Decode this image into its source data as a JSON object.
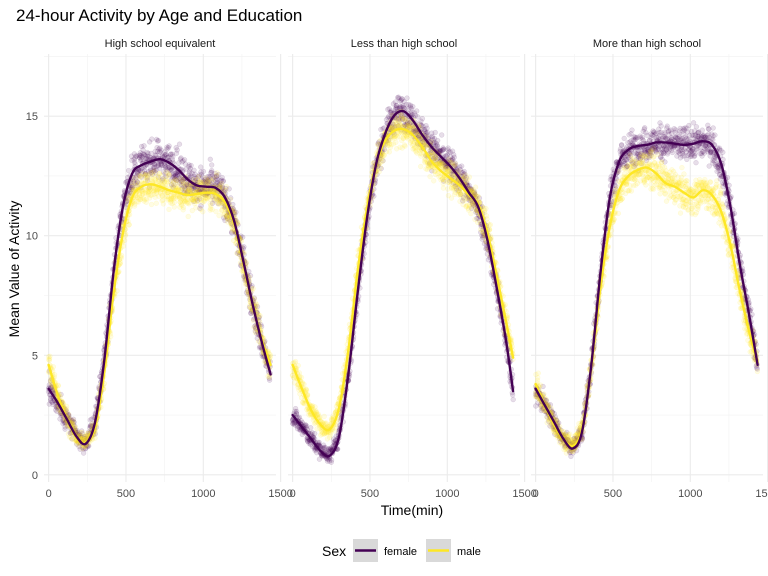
{
  "chart_data": {
    "type": "scatter",
    "title": "24-hour Activity by Age and Education",
    "xlabel": "Time(min)",
    "ylabel": "Mean Value of Activity",
    "xlim": [
      -30,
      1470
    ],
    "ylim": [
      -0.3,
      17.6
    ],
    "x_ticks": [
      0,
      500,
      1000,
      1500
    ],
    "x_tick_labels": [
      "0",
      "500",
      "1000",
      "1500"
    ],
    "y_ticks": [
      0,
      5,
      10,
      15
    ],
    "y_tick_labels": [
      "0",
      "5",
      "10",
      "15"
    ],
    "grid": true,
    "legend_title": "Sex",
    "legend_position": "bottom",
    "colors": {
      "female": "#440154",
      "male": "#FDE725",
      "panel_grid": "#ebebeb",
      "legend_key": "#d9d9d9"
    },
    "series_names": [
      "female",
      "male"
    ],
    "panels": [
      {
        "name": "High school equivalent",
        "series": [
          {
            "name": "female",
            "curve": [
              [
                0,
                3.6
              ],
              [
                60,
                3.0
              ],
              [
                120,
                2.3
              ],
              [
                180,
                1.6
              ],
              [
                240,
                1.3
              ],
              [
                300,
                2.2
              ],
              [
                360,
                4.8
              ],
              [
                420,
                8.5
              ],
              [
                480,
                11.2
              ],
              [
                540,
                12.6
              ],
              [
                600,
                12.95
              ],
              [
                660,
                13.1
              ],
              [
                720,
                13.2
              ],
              [
                780,
                13.05
              ],
              [
                840,
                12.75
              ],
              [
                900,
                12.35
              ],
              [
                960,
                12.1
              ],
              [
                1020,
                12.05
              ],
              [
                1080,
                12.0
              ],
              [
                1140,
                11.6
              ],
              [
                1200,
                10.6
              ],
              [
                1260,
                8.9
              ],
              [
                1320,
                7.1
              ],
              [
                1380,
                5.5
              ],
              [
                1435,
                4.2
              ]
            ],
            "noise": 1.0
          },
          {
            "name": "male",
            "curve": [
              [
                0,
                4.6
              ],
              [
                60,
                3.3
              ],
              [
                120,
                2.3
              ],
              [
                180,
                1.55
              ],
              [
                240,
                1.35
              ],
              [
                300,
                2.0
              ],
              [
                360,
                4.3
              ],
              [
                420,
                7.6
              ],
              [
                480,
                10.1
              ],
              [
                540,
                11.6
              ],
              [
                600,
                12.05
              ],
              [
                660,
                12.15
              ],
              [
                720,
                12.05
              ],
              [
                780,
                11.9
              ],
              [
                840,
                11.8
              ],
              [
                900,
                11.7
              ],
              [
                960,
                11.75
              ],
              [
                1020,
                11.8
              ],
              [
                1080,
                11.75
              ],
              [
                1140,
                11.4
              ],
              [
                1200,
                10.5
              ],
              [
                1260,
                8.8
              ],
              [
                1320,
                7.1
              ],
              [
                1380,
                5.6
              ],
              [
                1435,
                4.6
              ]
            ],
            "noise": 0.9
          }
        ]
      },
      {
        "name": "Less than high school",
        "series": [
          {
            "name": "female",
            "curve": [
              [
                0,
                2.5
              ],
              [
                60,
                2.0
              ],
              [
                120,
                1.5
              ],
              [
                180,
                1.0
              ],
              [
                240,
                0.8
              ],
              [
                300,
                1.6
              ],
              [
                360,
                4.2
              ],
              [
                420,
                7.6
              ],
              [
                480,
                10.7
              ],
              [
                540,
                13.0
              ],
              [
                600,
                14.3
              ],
              [
                660,
                15.05
              ],
              [
                720,
                15.2
              ],
              [
                780,
                14.8
              ],
              [
                840,
                14.2
              ],
              [
                900,
                13.7
              ],
              [
                960,
                13.3
              ],
              [
                1020,
                12.9
              ],
              [
                1080,
                12.4
              ],
              [
                1140,
                11.8
              ],
              [
                1200,
                11.2
              ],
              [
                1260,
                9.8
              ],
              [
                1320,
                7.8
              ],
              [
                1380,
                5.6
              ],
              [
                1425,
                3.5
              ]
            ],
            "noise": 0.9
          },
          {
            "name": "male",
            "curve": [
              [
                0,
                4.6
              ],
              [
                60,
                3.6
              ],
              [
                120,
                2.7
              ],
              [
                180,
                2.1
              ],
              [
                240,
                1.9
              ],
              [
                300,
                2.8
              ],
              [
                360,
                5.2
              ],
              [
                420,
                8.5
              ],
              [
                480,
                11.1
              ],
              [
                540,
                13.0
              ],
              [
                600,
                14.0
              ],
              [
                660,
                14.4
              ],
              [
                720,
                14.45
              ],
              [
                780,
                14.2
              ],
              [
                840,
                13.7
              ],
              [
                900,
                13.1
              ],
              [
                960,
                12.7
              ],
              [
                1020,
                12.4
              ],
              [
                1080,
                12.1
              ],
              [
                1140,
                11.7
              ],
              [
                1200,
                11.3
              ],
              [
                1260,
                10.1
              ],
              [
                1320,
                8.3
              ],
              [
                1380,
                6.4
              ],
              [
                1425,
                4.9
              ]
            ],
            "noise": 0.9
          }
        ]
      },
      {
        "name": "More than high school",
        "series": [
          {
            "name": "female",
            "curve": [
              [
                0,
                3.6
              ],
              [
                60,
                2.9
              ],
              [
                120,
                2.2
              ],
              [
                180,
                1.5
              ],
              [
                240,
                1.1
              ],
              [
                300,
                1.8
              ],
              [
                360,
                4.6
              ],
              [
                420,
                8.5
              ],
              [
                480,
                11.6
              ],
              [
                540,
                13.1
              ],
              [
                600,
                13.6
              ],
              [
                660,
                13.75
              ],
              [
                720,
                13.8
              ],
              [
                780,
                13.9
              ],
              [
                840,
                13.9
              ],
              [
                900,
                13.85
              ],
              [
                960,
                13.8
              ],
              [
                1020,
                13.85
              ],
              [
                1080,
                13.95
              ],
              [
                1140,
                13.8
              ],
              [
                1200,
                13.0
              ],
              [
                1260,
                11.2
              ],
              [
                1320,
                8.8
              ],
              [
                1380,
                6.7
              ],
              [
                1435,
                4.6
              ]
            ],
            "noise": 0.9
          },
          {
            "name": "male",
            "curve": [
              [
                0,
                3.8
              ],
              [
                60,
                2.9
              ],
              [
                120,
                2.1
              ],
              [
                180,
                1.5
              ],
              [
                240,
                1.2
              ],
              [
                300,
                1.9
              ],
              [
                360,
                4.5
              ],
              [
                420,
                7.9
              ],
              [
                480,
                10.4
              ],
              [
                540,
                11.9
              ],
              [
                600,
                12.5
              ],
              [
                660,
                12.75
              ],
              [
                720,
                12.85
              ],
              [
                780,
                12.6
              ],
              [
                840,
                12.2
              ],
              [
                900,
                12.05
              ],
              [
                960,
                11.8
              ],
              [
                1020,
                11.6
              ],
              [
                1080,
                11.9
              ],
              [
                1140,
                11.7
              ],
              [
                1200,
                11.0
              ],
              [
                1260,
                9.6
              ],
              [
                1320,
                7.7
              ],
              [
                1380,
                6.0
              ],
              [
                1435,
                4.7
              ]
            ],
            "noise": 0.9
          }
        ]
      }
    ]
  }
}
